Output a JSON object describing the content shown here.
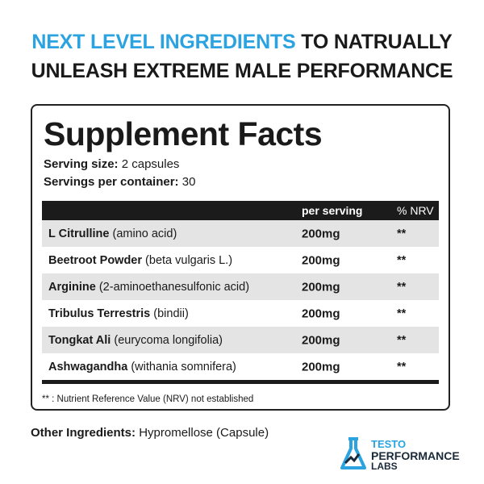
{
  "headline": {
    "highlight": "NEXT LEVEL INGREDIENTS",
    "line1_rest": "TO NATRUALLY",
    "line2": "UNLEASH EXTREME MALE PERFORMANCE"
  },
  "facts": {
    "title": "Supplement Facts",
    "serving_size": {
      "label": "Serving size:",
      "value": "2 capsules"
    },
    "servings_per_container": {
      "label": "Servings per container:",
      "value": "30"
    },
    "table": {
      "columns": [
        "per serving",
        "% NRV"
      ],
      "rows": [
        {
          "name": "L Citrulline",
          "detail": "(amino acid)",
          "amount": "200mg",
          "nrv": "**"
        },
        {
          "name": "Beetroot Powder",
          "detail": "(beta vulgaris L.)",
          "amount": "200mg",
          "nrv": "**"
        },
        {
          "name": "Arginine",
          "detail": "(2-aminoethanesulfonic acid)",
          "amount": "200mg",
          "nrv": "**"
        },
        {
          "name": "Tribulus Terrestris",
          "detail": "(bindii)",
          "amount": "200mg",
          "nrv": "**"
        },
        {
          "name": "Tongkat Ali",
          "detail": "(eurycoma longifolia)",
          "amount": "200mg",
          "nrv": "**"
        },
        {
          "name": "Ashwagandha",
          "detail": "(withania somnifera)",
          "amount": "200mg",
          "nrv": "**"
        }
      ]
    },
    "footnote": "** : Nutrient Reference Value (NRV) not established"
  },
  "other_ingredients": {
    "label": "Other Ingredients:",
    "value": "Hypromellose (Capsule)"
  },
  "logo": {
    "line1": "TESTO",
    "line2": "PERFORMANCE",
    "line3": "LABS"
  }
}
